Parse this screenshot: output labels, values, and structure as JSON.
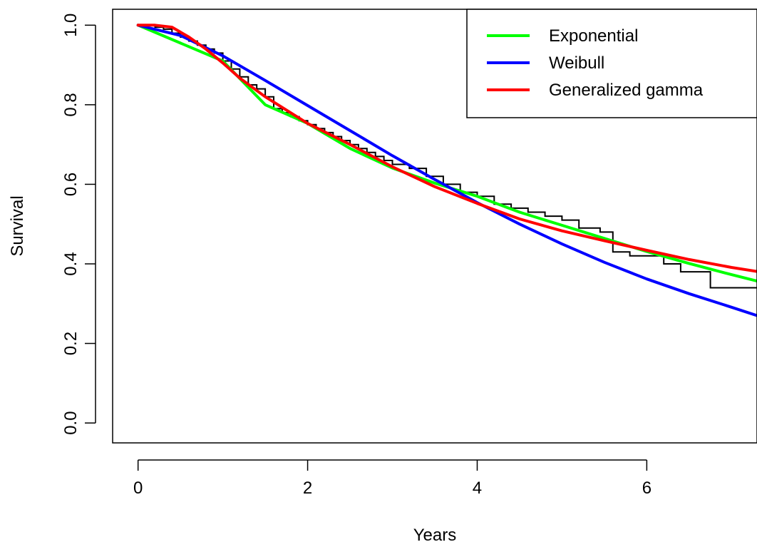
{
  "chart_data": {
    "type": "line",
    "title": "",
    "xlabel": "Years",
    "ylabel": "Survival",
    "xlim": [
      -0.3,
      7.3
    ],
    "ylim": [
      -0.05,
      1.04
    ],
    "x_ticks": [
      0,
      2,
      4,
      6
    ],
    "x_tick_labels": [
      "0",
      "2",
      "4",
      "6"
    ],
    "y_ticks": [
      0.0,
      0.2,
      0.4,
      0.6,
      0.8,
      1.0
    ],
    "y_tick_labels": [
      "0.0",
      "0.2",
      "0.4",
      "0.6",
      "0.8",
      "1.0"
    ],
    "grid": false,
    "legend_position": "top-right",
    "legend": [
      "Exponential",
      "Weibull",
      "Generalized gamma"
    ],
    "kaplan_meier": {
      "color": "#000000",
      "step": true,
      "x": [
        0,
        0.1,
        0.2,
        0.3,
        0.4,
        0.5,
        0.6,
        0.7,
        0.8,
        0.9,
        1.0,
        1.1,
        1.2,
        1.3,
        1.4,
        1.5,
        1.6,
        1.7,
        1.8,
        1.9,
        2.0,
        2.1,
        2.2,
        2.3,
        2.4,
        2.5,
        2.6,
        2.7,
        2.8,
        2.9,
        3.0,
        3.2,
        3.4,
        3.6,
        3.8,
        4.0,
        4.2,
        4.4,
        4.6,
        4.8,
        5.0,
        5.2,
        5.45,
        5.6,
        5.8,
        6.0,
        6.2,
        6.4,
        6.75,
        7.3
      ],
      "y": [
        1.0,
        1.0,
        0.995,
        0.99,
        0.98,
        0.97,
        0.96,
        0.95,
        0.94,
        0.93,
        0.91,
        0.89,
        0.87,
        0.85,
        0.84,
        0.82,
        0.79,
        0.78,
        0.77,
        0.76,
        0.75,
        0.74,
        0.73,
        0.72,
        0.71,
        0.7,
        0.69,
        0.68,
        0.67,
        0.66,
        0.65,
        0.64,
        0.62,
        0.6,
        0.58,
        0.57,
        0.55,
        0.54,
        0.53,
        0.52,
        0.51,
        0.49,
        0.48,
        0.43,
        0.42,
        0.42,
        0.4,
        0.38,
        0.34,
        0.34
      ]
    },
    "series": [
      {
        "name": "Exponential",
        "color": "#00ff00",
        "x": [
          0,
          0.5,
          1.0,
          1.5,
          2.0,
          2.5,
          3.0,
          3.5,
          4.0,
          4.5,
          5.0,
          5.5,
          6.0,
          6.5,
          7.0,
          7.3
        ],
        "y": [
          1.0,
          0.955,
          0.91,
          0.8,
          0.753,
          0.69,
          0.641,
          0.603,
          0.57,
          0.53,
          0.497,
          0.464,
          0.431,
          0.401,
          0.373,
          0.357
        ]
      },
      {
        "name": "Weibull",
        "color": "#0000ff",
        "x": [
          0,
          0.5,
          1.0,
          1.5,
          2.0,
          2.5,
          3.0,
          3.5,
          4.0,
          4.5,
          5.0,
          5.5,
          6.0,
          6.5,
          7.0,
          7.3
        ],
        "y": [
          1.0,
          0.974,
          0.923,
          0.861,
          0.798,
          0.735,
          0.672,
          0.612,
          0.554,
          0.5,
          0.45,
          0.404,
          0.362,
          0.325,
          0.291,
          0.27
        ]
      },
      {
        "name": "Generalized gamma",
        "color": "#ff0000",
        "x": [
          0,
          0.2,
          0.4,
          0.6,
          0.8,
          1.0,
          1.2,
          1.5,
          2.0,
          2.5,
          3.0,
          3.5,
          4.0,
          4.5,
          5.0,
          5.5,
          6.0,
          6.5,
          7.0,
          7.3
        ],
        "y": [
          1.0,
          1.0,
          0.995,
          0.97,
          0.94,
          0.905,
          0.867,
          0.82,
          0.753,
          0.7,
          0.644,
          0.594,
          0.552,
          0.513,
          0.483,
          0.458,
          0.434,
          0.411,
          0.391,
          0.381
        ]
      }
    ]
  }
}
